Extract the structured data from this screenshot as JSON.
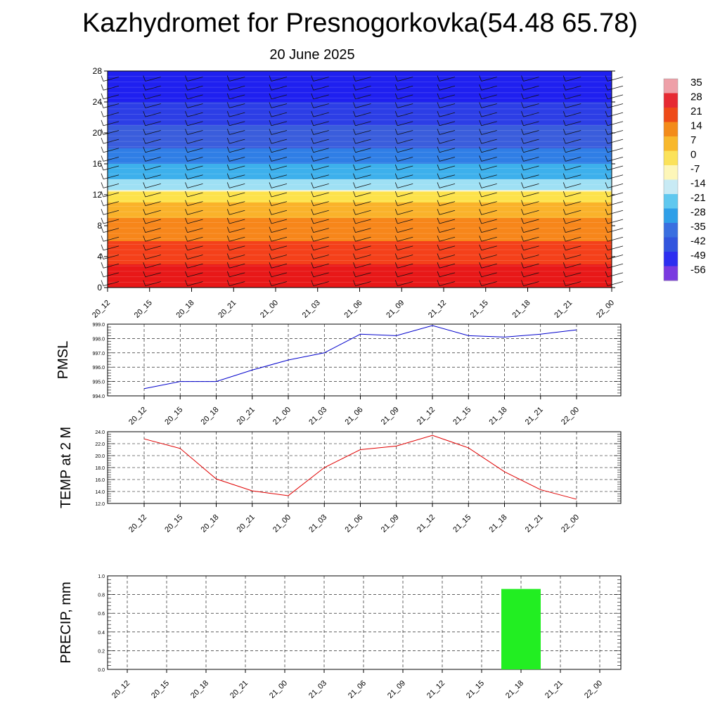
{
  "title": "Kazhydromet for Presnogorkovka(54.48 65.78)",
  "subtitle": "20 June 2025",
  "time_labels": [
    "20_12",
    "20_15",
    "20_18",
    "20_21",
    "21_00",
    "21_03",
    "21_06",
    "21_09",
    "21_12",
    "21_15",
    "21_18",
    "21_21",
    "22_00"
  ],
  "colorbar": {
    "labels": [
      "35",
      "28",
      "21",
      "14",
      "7",
      "0",
      "-7",
      "-14",
      "-21",
      "-28",
      "-35",
      "-42",
      "-49",
      "-56"
    ],
    "colors": [
      "#eea0a8",
      "#e62a33",
      "#ee4a18",
      "#f38b1a",
      "#f8b82c",
      "#fbe25a",
      "#fdf6b8",
      "#c8eaf4",
      "#60c8ef",
      "#2f9fe8",
      "#3a6fe0",
      "#3255de",
      "#2d2ef0",
      "#7a3ae0"
    ]
  },
  "chart_data": [
    {
      "type": "heatmap",
      "title": "",
      "ylabel": "",
      "x": [
        "20_12",
        "20_15",
        "20_18",
        "20_21",
        "21_00",
        "21_03",
        "21_06",
        "21_09",
        "21_12",
        "21_15",
        "21_18",
        "21_21",
        "22_00"
      ],
      "ylim": [
        0,
        28
      ],
      "yticks": [
        0,
        4,
        8,
        12,
        16,
        20,
        24,
        28
      ],
      "freezing_level": 12.5,
      "temperature_bands": [
        {
          "y_from": 0,
          "y_to": 3,
          "color": "#e81818"
        },
        {
          "y_from": 3,
          "y_to": 6,
          "color": "#f4401a"
        },
        {
          "y_from": 6,
          "y_to": 9,
          "color": "#f7861a"
        },
        {
          "y_from": 9,
          "y_to": 11,
          "color": "#fab22a"
        },
        {
          "y_from": 11,
          "y_to": 12.5,
          "color": "#fde24a"
        },
        {
          "y_from": 12.5,
          "y_to": 14,
          "color": "#9ee0f4"
        },
        {
          "y_from": 14,
          "y_to": 16,
          "color": "#3db0ec"
        },
        {
          "y_from": 16,
          "y_to": 18,
          "color": "#2f7ee6"
        },
        {
          "y_from": 18,
          "y_to": 21,
          "color": "#3a5ddc"
        },
        {
          "y_from": 21,
          "y_to": 24,
          "color": "#2c3ee6"
        },
        {
          "y_from": 24,
          "y_to": 28,
          "color": "#1f20f0"
        }
      ]
    },
    {
      "type": "line",
      "ylabel": "PMSL",
      "x": [
        "20_12",
        "20_15",
        "20_18",
        "20_21",
        "21_00",
        "21_03",
        "21_06",
        "21_09",
        "21_12",
        "21_15",
        "21_18",
        "21_21",
        "22_00"
      ],
      "series": [
        {
          "values": [
            994.5,
            995.0,
            995.0,
            995.8,
            996.5,
            997.0,
            998.3,
            998.2,
            998.9,
            998.2,
            998.1,
            998.3,
            998.6
          ],
          "color": "#0000cc"
        }
      ],
      "ylim": [
        994.0,
        999.0
      ],
      "yticks": [
        "994.0",
        "995.0",
        "996.0",
        "997.0",
        "998.0",
        "999.0"
      ]
    },
    {
      "type": "line",
      "ylabel": "TEMP at 2 M",
      "x": [
        "20_12",
        "20_15",
        "20_18",
        "20_21",
        "21_00",
        "21_03",
        "21_06",
        "21_09",
        "21_12",
        "21_15",
        "21_18",
        "21_21",
        "22_00"
      ],
      "series": [
        {
          "values": [
            22.8,
            21.2,
            16.1,
            14.1,
            13.3,
            18.0,
            21.0,
            21.6,
            23.4,
            21.3,
            17.3,
            14.3,
            12.7
          ],
          "color": "#e00000"
        }
      ],
      "ylim": [
        12.0,
        24.0
      ],
      "yticks": [
        "12.0",
        "14.0",
        "16.0",
        "18.0",
        "20.0",
        "22.0",
        "24.0"
      ]
    },
    {
      "type": "bar",
      "ylabel": "PRECIP, mm",
      "categories": [
        "20_12",
        "20_15",
        "20_18",
        "20_21",
        "21_00",
        "21_03",
        "21_06",
        "21_09",
        "21_12",
        "21_15",
        "21_18",
        "21_21",
        "22_00"
      ],
      "values": [
        0,
        0,
        0,
        0,
        0,
        0,
        0,
        0,
        0,
        0,
        0.86,
        0,
        0
      ],
      "color": "#22ee22",
      "ylim": [
        0.0,
        1.0
      ],
      "yticks": [
        "0.0",
        "0.2",
        "0.4",
        "0.6",
        "0.8",
        "1.0"
      ]
    }
  ]
}
